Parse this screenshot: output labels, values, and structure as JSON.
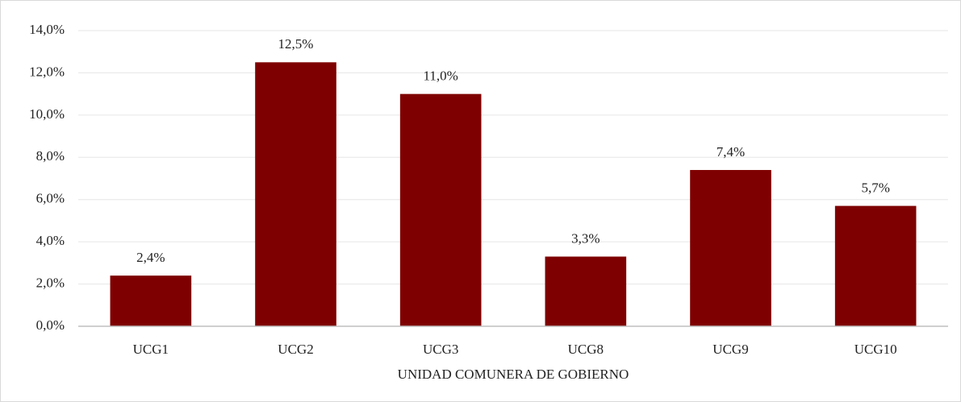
{
  "chart_data": {
    "type": "bar",
    "x_label": "UNIDAD COMUNERA DE GOBIERNO",
    "categories": [
      "UCG1",
      "UCG2",
      "UCG3",
      "UCG8",
      "UCG9",
      "UCG10"
    ],
    "values": [
      2.4,
      12.5,
      11.0,
      3.3,
      7.4,
      5.7
    ],
    "value_labels": [
      "2,4%",
      "12,5%",
      "11,0%",
      "3,3%",
      "7,4%",
      "5,7%"
    ],
    "color": "#7f0000",
    "ylim": [
      0,
      14
    ],
    "yticks": [
      {
        "value": 0,
        "label": "0,0%"
      },
      {
        "value": 2,
        "label": "2,0%"
      },
      {
        "value": 4,
        "label": "4,0%"
      },
      {
        "value": 6,
        "label": "6,0%"
      },
      {
        "value": 8,
        "label": "8,0%"
      },
      {
        "value": 10,
        "label": "10,0%"
      },
      {
        "value": 12,
        "label": "12,0%"
      },
      {
        "value": 14,
        "label": "14,0%"
      }
    ],
    "grid": true
  }
}
